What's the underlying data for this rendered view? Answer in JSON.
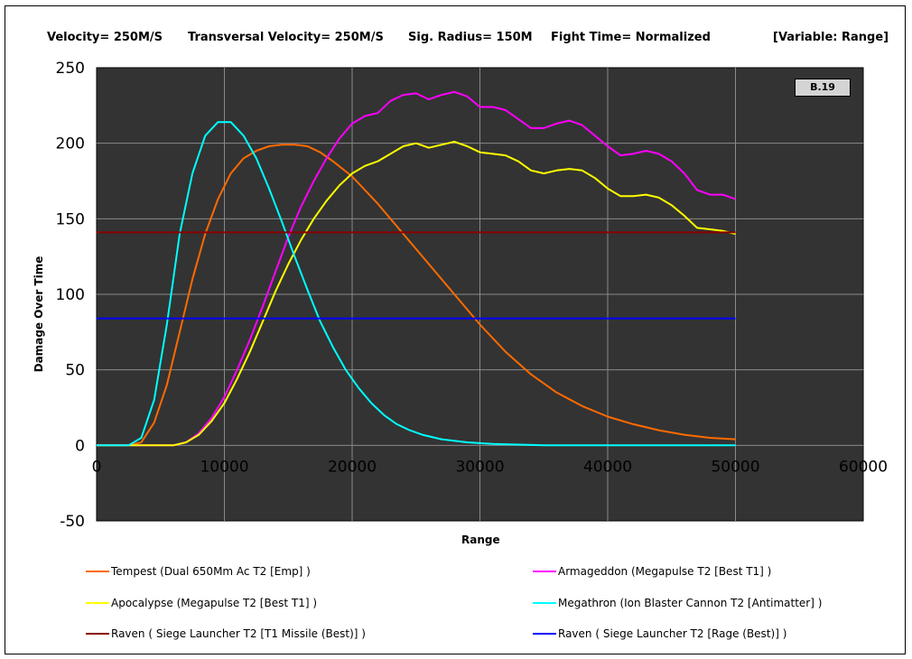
{
  "header": {
    "velocity": "Velocity= 250M/S",
    "transversal": "Transversal Velocity= 250M/S",
    "sig_radius": "Sig. Radius= 150M",
    "fight_time": "Fight Time= Normalized",
    "variable": "[Variable: Range]"
  },
  "badge": "B.19",
  "colors": {
    "plot_bg": "#333333",
    "grid": "#8a8a8a",
    "tempest": "#ff6a00",
    "armageddon": "#ff00ff",
    "apocalypse": "#ffff00",
    "megathron": "#00ffff",
    "raven_t1": "#8b0000",
    "raven_rage": "#0000ff"
  },
  "chart_data": {
    "type": "line",
    "title": "",
    "xlabel": "Range",
    "ylabel": "Damage Over Time",
    "xlim": [
      0,
      60000
    ],
    "ylim": [
      -50,
      250
    ],
    "x_ticks": [
      "0",
      "10000",
      "20000",
      "30000",
      "40000",
      "50000",
      "60000"
    ],
    "y_ticks": [
      "250",
      "200",
      "150",
      "100",
      "50",
      "0",
      "-50"
    ],
    "grid": true,
    "legend_position": "bottom",
    "series": [
      {
        "name": "Tempest (Dual 650Mm Ac T2 [Emp] )",
        "color": "#ff6a00",
        "x": [
          0,
          2500,
          3500,
          4500,
          5500,
          6500,
          7500,
          8500,
          9500,
          10500,
          11500,
          12500,
          13500,
          14500,
          15500,
          16500,
          17500,
          18500,
          20000,
          22000,
          24000,
          26000,
          28000,
          30000,
          32000,
          34000,
          36000,
          38000,
          40000,
          42000,
          44000,
          46000,
          48000,
          50000
        ],
        "y": [
          0,
          0,
          2,
          15,
          40,
          75,
          110,
          140,
          163,
          180,
          190,
          195,
          198,
          199,
          199,
          198,
          194,
          188,
          178,
          160,
          140,
          120,
          100,
          80,
          62,
          47,
          35,
          26,
          19,
          14,
          10,
          7,
          5,
          4
        ]
      },
      {
        "name": "Armageddon (Megapulse T2 [Best T1] )",
        "color": "#ff00ff",
        "x": [
          0,
          6000,
          7000,
          8000,
          9000,
          10000,
          11000,
          12000,
          13000,
          14000,
          15000,
          16000,
          17000,
          18000,
          19000,
          20000,
          21000,
          22000,
          23000,
          24000,
          25000,
          26000,
          27000,
          28000,
          29000,
          30000,
          31000,
          32000,
          33000,
          34000,
          35000,
          36000,
          37000,
          38000,
          39000,
          40000,
          41000,
          42000,
          43000,
          44000,
          45000,
          46000,
          47000,
          48000,
          49000,
          50000
        ],
        "y": [
          0,
          0,
          2,
          8,
          18,
          32,
          50,
          70,
          92,
          115,
          138,
          158,
          175,
          190,
          203,
          213,
          218,
          220,
          228,
          232,
          233,
          229,
          232,
          234,
          231,
          224,
          224,
          222,
          216,
          210,
          210,
          213,
          215,
          212,
          205,
          198,
          192,
          193,
          195,
          193,
          188,
          180,
          169,
          166,
          166,
          163
        ]
      },
      {
        "name": "Apocalypse (Megapulse T2 [Best T1] )",
        "color": "#ffff00",
        "x": [
          0,
          6000,
          7000,
          8000,
          9000,
          10000,
          11000,
          12000,
          13000,
          14000,
          15000,
          16000,
          17000,
          18000,
          19000,
          20000,
          21000,
          22000,
          23000,
          24000,
          25000,
          26000,
          27000,
          28000,
          29000,
          30000,
          31000,
          32000,
          33000,
          34000,
          35000,
          36000,
          37000,
          38000,
          39000,
          40000,
          41000,
          42000,
          43000,
          44000,
          45000,
          46000,
          47000,
          48000,
          49000,
          50000
        ],
        "y": [
          0,
          0,
          2,
          7,
          16,
          28,
          44,
          62,
          82,
          102,
          120,
          136,
          150,
          162,
          172,
          180,
          185,
          188,
          193,
          198,
          200,
          197,
          199,
          201,
          198,
          194,
          193,
          192,
          188,
          182,
          180,
          182,
          183,
          182,
          177,
          170,
          165,
          165,
          166,
          164,
          159,
          152,
          144,
          143,
          142,
          140
        ]
      },
      {
        "name": "Megathron (Ion Blaster Cannon T2 [Antimatter] )",
        "color": "#00ffff",
        "x": [
          0,
          2500,
          3500,
          4500,
          5500,
          6500,
          7500,
          8500,
          9500,
          10500,
          11500,
          12500,
          13500,
          14500,
          15500,
          16500,
          17500,
          18500,
          19500,
          20500,
          21500,
          22500,
          23500,
          24500,
          25500,
          27000,
          29000,
          31000,
          33000,
          35000,
          37000,
          40000,
          45000,
          50000
        ],
        "y": [
          0,
          0,
          5,
          30,
          80,
          140,
          180,
          205,
          214,
          214,
          205,
          190,
          170,
          148,
          125,
          103,
          82,
          65,
          50,
          38,
          28,
          20,
          14,
          10,
          7,
          4,
          2,
          1,
          0.5,
          0,
          0,
          0,
          0,
          0
        ]
      },
      {
        "name": "Raven ( Siege Launcher T2 [T1 Missile (Best)] )",
        "color": "#8b0000",
        "x": [
          0,
          50000
        ],
        "y": [
          141,
          141
        ]
      },
      {
        "name": "Raven ( Siege Launcher T2 [Rage (Best)] )",
        "color": "#0000ff",
        "x": [
          0,
          50000
        ],
        "y": [
          84,
          84
        ]
      }
    ]
  },
  "legend": [
    {
      "label": "Tempest (Dual 650Mm Ac T2 [Emp] )",
      "color": "#ff6a00"
    },
    {
      "label": "Armageddon (Megapulse T2 [Best T1] )",
      "color": "#ff00ff"
    },
    {
      "label": "Apocalypse (Megapulse T2 [Best T1] )",
      "color": "#ffff00"
    },
    {
      "label": "Megathron (Ion Blaster Cannon T2 [Antimatter] )",
      "color": "#00ffff"
    },
    {
      "label": "Raven ( Siege Launcher T2 [T1 Missile (Best)] )",
      "color": "#8b0000"
    },
    {
      "label": "Raven ( Siege Launcher T2 [Rage (Best)] )",
      "color": "#0000ff"
    }
  ]
}
